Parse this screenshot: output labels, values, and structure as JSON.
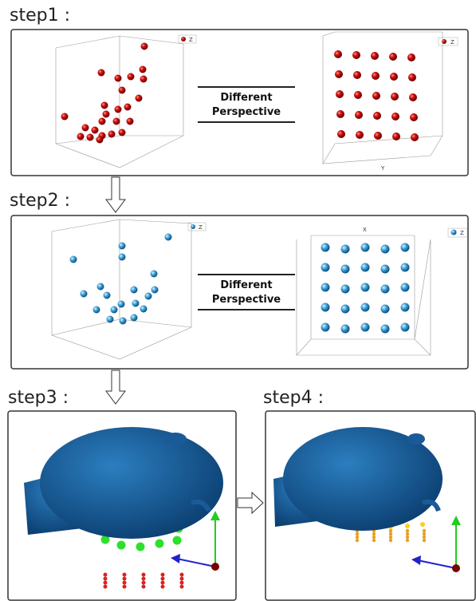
{
  "step1": {
    "label": "step1 :",
    "caption": [
      "Different",
      "Perspective"
    ],
    "legend_left": "Z",
    "legend_right": "Z",
    "axis_label": "Y"
  },
  "step2": {
    "label": "step2 :",
    "caption": [
      "Different",
      "Perspective"
    ],
    "legend_left": "Z",
    "legend_right": "Z",
    "axis_label": "X"
  },
  "step3": {
    "label": "step3 :"
  },
  "step4": {
    "label": "step4 :"
  }
}
